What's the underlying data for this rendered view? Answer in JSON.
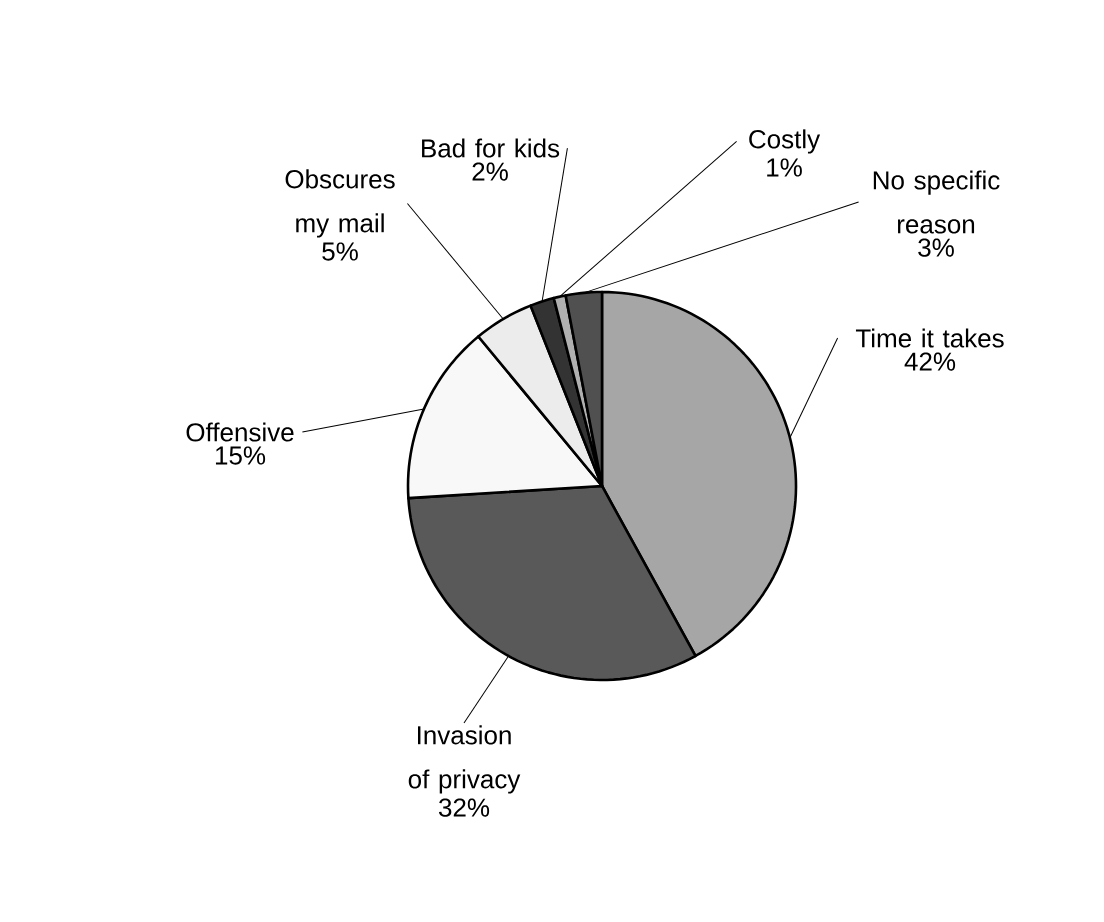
{
  "chart_data": {
    "type": "pie",
    "categories": [
      "Time it takes",
      "Invasion of privacy",
      "Offensive",
      "Obscures my mail",
      "Bad for kids",
      "Costly",
      "No specific reason"
    ],
    "values": [
      42,
      32,
      15,
      5,
      2,
      1,
      3
    ],
    "value_labels": [
      "42%",
      "32%",
      "15%",
      "5%",
      "2%",
      "1%",
      "3%"
    ],
    "colors": [
      "#a6a6a6",
      "#595959",
      "#f8f8f8",
      "#ececec",
      "#333333",
      "#b0b0b0",
      "#505050"
    ]
  }
}
